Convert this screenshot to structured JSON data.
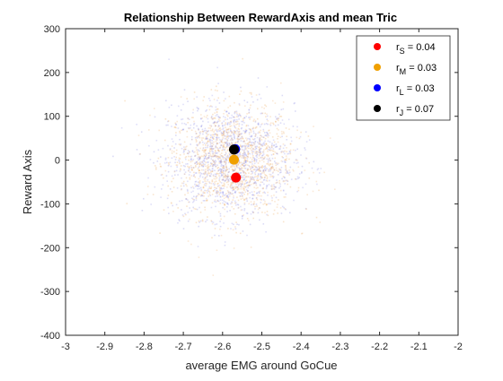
{
  "chart_data": {
    "type": "scatter",
    "title": "Relationship Between RewardAxis and mean Tric",
    "xlabel": "average EMG around GoCue",
    "ylabel": "Reward Axis",
    "xlim": [
      -3,
      -2
    ],
    "ylim": [
      -400,
      300
    ],
    "xticks": [
      -3,
      -2.9,
      -2.8,
      -2.7,
      -2.6,
      -2.5,
      -2.4,
      -2.3,
      -2.2,
      -2.1,
      -2
    ],
    "xtick_labels": [
      "-3",
      "-2.9",
      "-2.8",
      "-2.7",
      "-2.6",
      "-2.5",
      "-2.4",
      "-2.3",
      "-2.2",
      "-2.1",
      "-2"
    ],
    "yticks": [
      -400,
      -300,
      -200,
      -100,
      0,
      100,
      200,
      300
    ],
    "ytick_labels": [
      "-400",
      "-300",
      "-200",
      "-100",
      "0",
      "100",
      "200",
      "300"
    ],
    "grid": false,
    "legend_position": "top-right",
    "cloud": {
      "center_x": -2.58,
      "center_y": 0,
      "spread_x": 0.08,
      "spread_y": 65,
      "colors": [
        "#e8a050",
        "#8080e0",
        "#f0b070",
        "#9090e8"
      ]
    },
    "series": [
      {
        "name": "r_S = 0.04",
        "label_main": "r",
        "label_sub": "S",
        "label_value": " = 0.04",
        "color": "#ff0000",
        "x": -2.566,
        "y": -40
      },
      {
        "name": "r_M = 0.03",
        "label_main": "r",
        "label_sub": "M",
        "label_value": " = 0.03",
        "color": "#f0a000",
        "x": -2.571,
        "y": 1
      },
      {
        "name": "r_L = 0.03",
        "label_main": "r",
        "label_sub": "L",
        "label_value": " = 0.03",
        "color": "#0000ff",
        "x": -2.568,
        "y": 25
      },
      {
        "name": "r_J = 0.07",
        "label_main": "r",
        "label_sub": "J",
        "label_value": " = 0.07",
        "color": "#000000",
        "x": -2.571,
        "y": 24
      }
    ]
  }
}
